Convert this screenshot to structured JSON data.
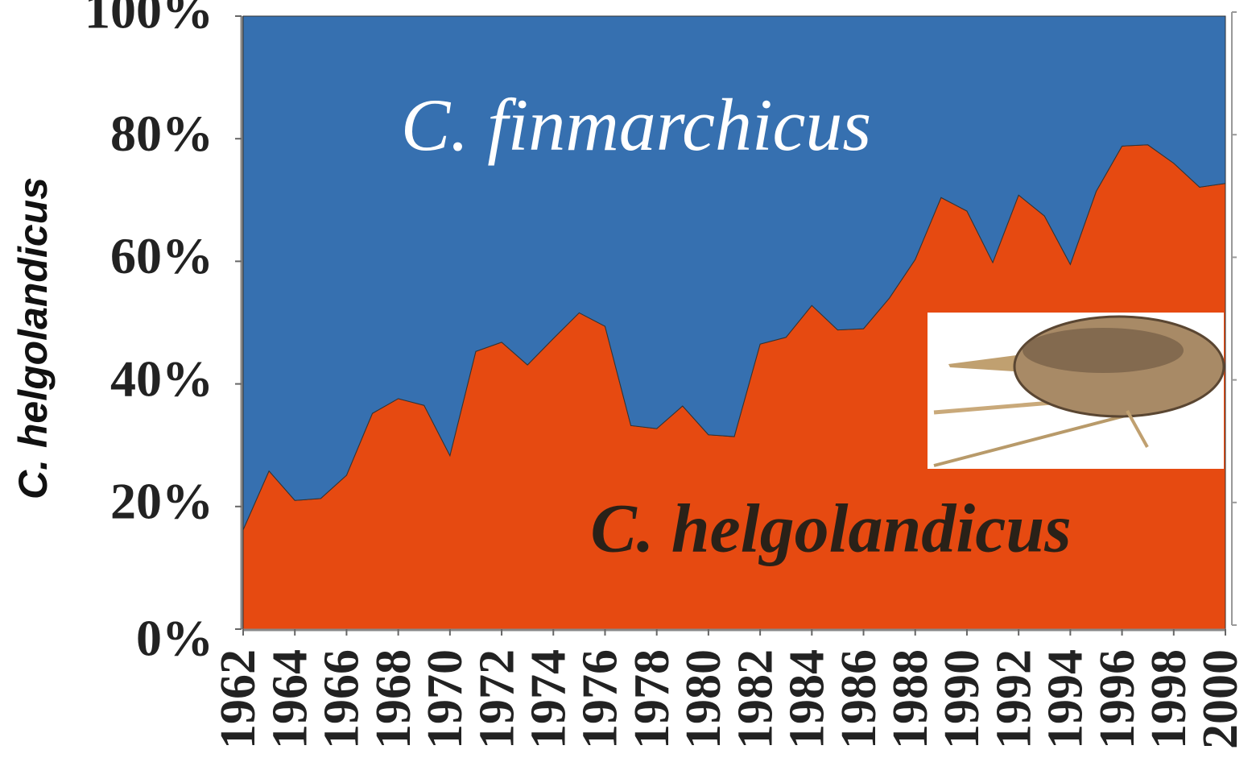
{
  "chart_data": {
    "type": "stacked_area",
    "y_axis_label": "C. helgolandicus",
    "annotations": [
      "C. finmarchicus",
      "C. helgolandicus"
    ],
    "x": [
      1962,
      1963,
      1964,
      1965,
      1966,
      1967,
      1968,
      1969,
      1970,
      1971,
      1972,
      1973,
      1974,
      1975,
      1976,
      1977,
      1978,
      1979,
      1980,
      1981,
      1982,
      1983,
      1984,
      1985,
      1986,
      1987,
      1988,
      1989,
      1990,
      1991,
      1992,
      1993,
      1994,
      1995,
      1996,
      1997,
      1998,
      1999,
      2000
    ],
    "xlim": [
      1962,
      2000
    ],
    "xticks": [
      1962,
      1964,
      1966,
      1968,
      1970,
      1972,
      1974,
      1976,
      1978,
      1980,
      1982,
      1984,
      1986,
      1988,
      1990,
      1992,
      1994,
      1996,
      1998,
      2000
    ],
    "ylim": [
      0,
      100
    ],
    "yticks": [
      {
        "value": 0,
        "label": "0%"
      },
      {
        "value": 20,
        "label": "20%"
      },
      {
        "value": 40,
        "label": "40%"
      },
      {
        "value": 60,
        "label": "60%"
      },
      {
        "value": 80,
        "label": "80%"
      },
      {
        "value": 100,
        "label": "100%"
      }
    ],
    "series": [
      {
        "name": "C. helgolandicus",
        "color": "#e64a11",
        "values": [
          16.2,
          25.8,
          21.0,
          21.3,
          25.1,
          35.2,
          37.6,
          36.5,
          28.3,
          45.3,
          46.8,
          43.1,
          47.4,
          51.6,
          49.4,
          33.2,
          32.7,
          36.4,
          31.7,
          31.4,
          46.5,
          47.6,
          52.8,
          48.8,
          49.0,
          54.0,
          60.3,
          70.4,
          68.2,
          59.8,
          70.8,
          67.4,
          59.5,
          71.4,
          78.8,
          79.0,
          76.0,
          72.1,
          72.7
        ]
      },
      {
        "name": "C. finmarchicus",
        "color": "#3670b0",
        "values": [
          83.8,
          74.2,
          79.0,
          78.7,
          74.9,
          64.8,
          62.4,
          63.5,
          71.7,
          54.7,
          53.2,
          56.9,
          52.6,
          48.4,
          50.6,
          66.8,
          67.3,
          63.6,
          68.3,
          68.6,
          53.5,
          52.4,
          47.2,
          51.2,
          51.0,
          46.0,
          39.7,
          29.6,
          31.8,
          40.2,
          29.2,
          32.6,
          40.5,
          28.6,
          21.2,
          21.0,
          24.0,
          27.9,
          27.3
        ]
      }
    ]
  }
}
